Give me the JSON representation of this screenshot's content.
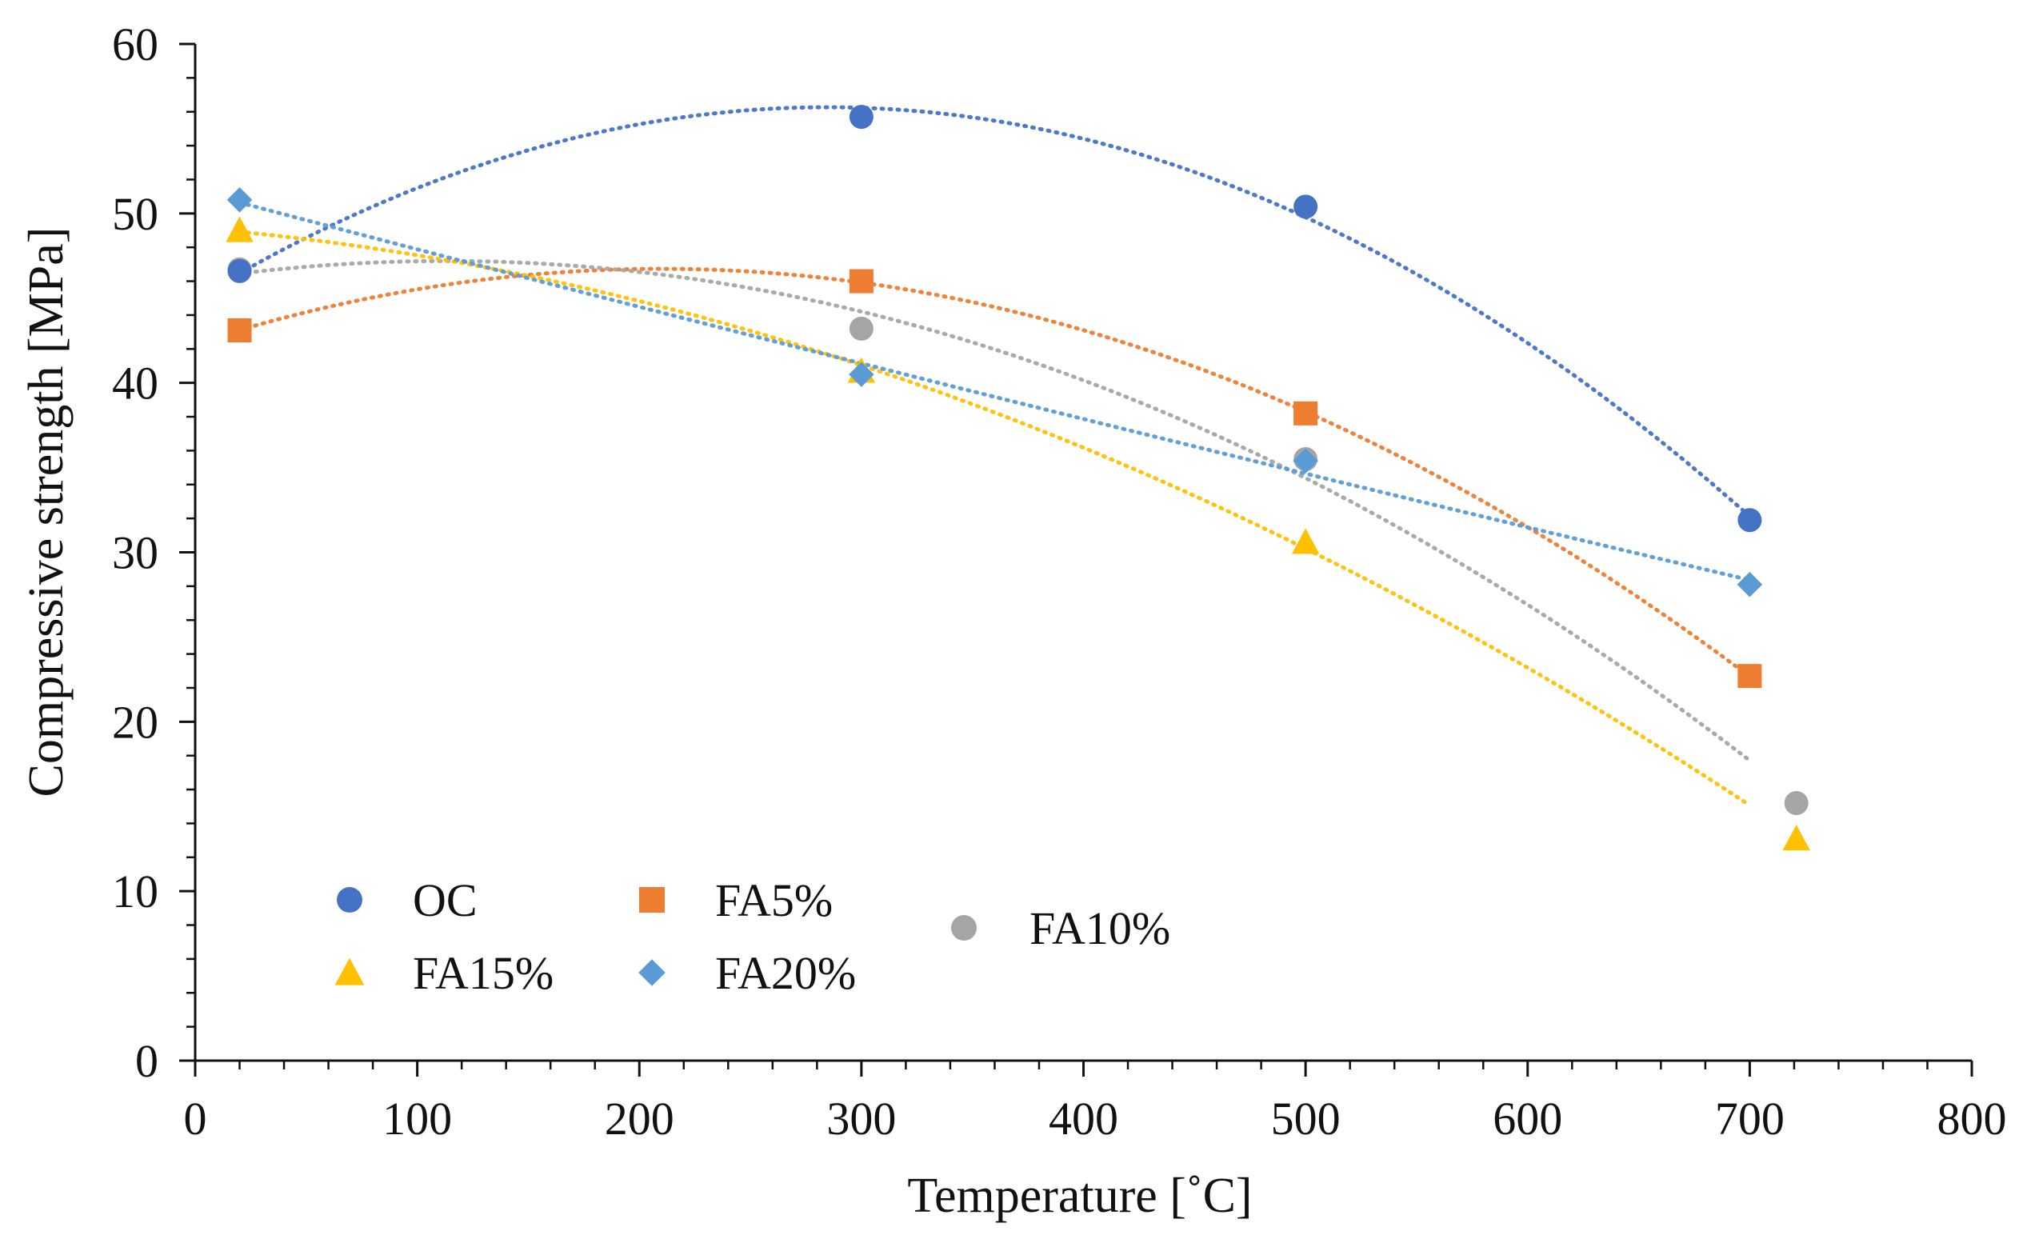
{
  "chart_data": {
    "type": "scatter",
    "title": "",
    "xlabel": "Temperature [˚C]",
    "ylabel": "Compressive strength [MPa]",
    "xlim": [
      0,
      800
    ],
    "ylim": [
      0,
      60
    ],
    "xticks": [
      0,
      100,
      200,
      300,
      400,
      500,
      600,
      700,
      800
    ],
    "yticks": [
      0,
      10,
      20,
      30,
      40,
      50,
      60
    ],
    "xtick_labels": [
      "0",
      "100",
      "200",
      "300",
      "400",
      "500",
      "600",
      "700",
      "800"
    ],
    "ytick_labels": [
      "0",
      "10",
      "20",
      "30",
      "40",
      "50",
      "60"
    ],
    "grid": false,
    "legend_position": "bottom-left",
    "trendline_style": "dotted polynomial",
    "series": [
      {
        "name": "OC",
        "marker": "circle",
        "color": "#4472C4",
        "points": [
          [
            20,
            46.6
          ],
          [
            300,
            55.7
          ],
          [
            500,
            50.4
          ],
          [
            700,
            31.9
          ]
        ],
        "trend": {
          "from": 20,
          "to": 700
        }
      },
      {
        "name": "FA5%",
        "marker": "square",
        "color": "#ED7D31",
        "points": [
          [
            20,
            43.1
          ],
          [
            300,
            46.0
          ],
          [
            500,
            38.2
          ],
          [
            700,
            22.7
          ]
        ],
        "trend": {
          "from": 20,
          "to": 700
        }
      },
      {
        "name": "FA10%",
        "marker": "circle",
        "color": "#A5A5A5",
        "points": [
          [
            20,
            46.7
          ],
          [
            300,
            43.2
          ],
          [
            500,
            35.5
          ],
          [
            721,
            15.2
          ]
        ],
        "trend": {
          "from": 20,
          "to": 700
        }
      },
      {
        "name": "FA15%",
        "marker": "triangle",
        "color": "#FFC000",
        "points": [
          [
            20,
            49.0
          ],
          [
            300,
            40.7
          ],
          [
            500,
            30.6
          ],
          [
            721,
            13.1
          ]
        ],
        "trend": {
          "from": 20,
          "to": 700
        }
      },
      {
        "name": "FA20%",
        "marker": "diamond",
        "color": "#5B9BD5",
        "points": [
          [
            20,
            50.8
          ],
          [
            300,
            40.5
          ],
          [
            500,
            35.4
          ],
          [
            700,
            28.1
          ]
        ],
        "trend": {
          "from": 20,
          "to": 700
        }
      }
    ],
    "legend_order": [
      "OC",
      "FA5%",
      "FA10%",
      "FA15%",
      "FA20%"
    ]
  }
}
